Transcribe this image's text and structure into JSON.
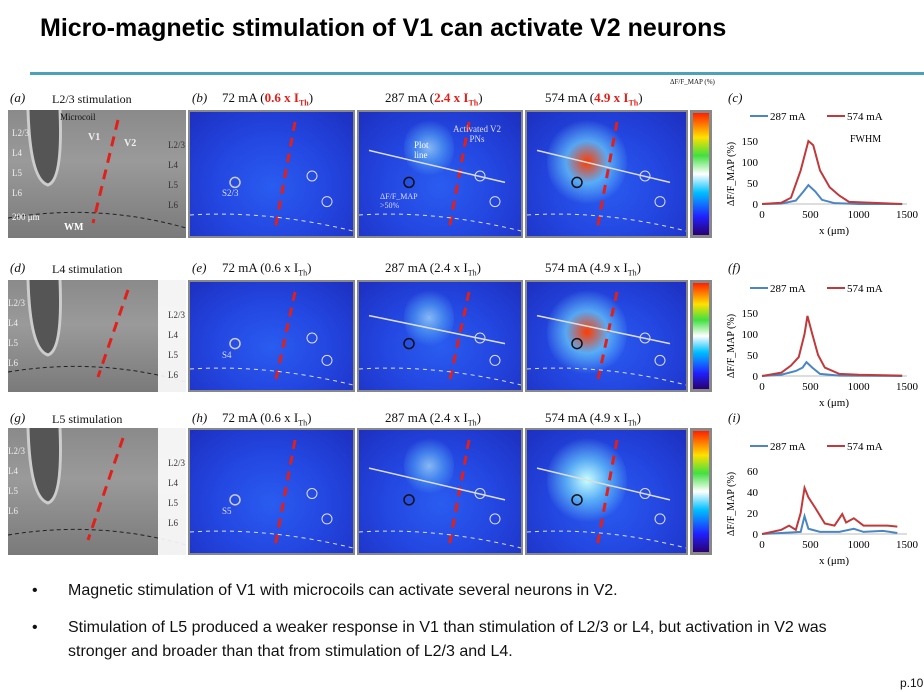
{
  "title": "Micro-magnetic stimulation of V1 can activate V2 neurons",
  "rows": [
    {
      "anat_label": "(a)",
      "stim": "L2/3 stimulation",
      "map_label": "(b)",
      "chart_label": "(c)",
      "currents": [
        {
          "base": "72 mA (",
          "mult": "0.6 x I",
          "sub": "Th",
          "end": ")"
        },
        {
          "base": "287 mA (",
          "mult": "2.4 x I",
          "sub": "Th",
          "end": ")"
        },
        {
          "base": "574 mA (",
          "mult": "4.9 x I",
          "sub": "Th",
          "end": ")"
        }
      ],
      "site": "S2/3"
    },
    {
      "anat_label": "(d)",
      "stim": "L4 stimulation",
      "map_label": "(e)",
      "chart_label": "(f)",
      "currents": [
        {
          "base": "72 mA (",
          "mult": "0.6 x I",
          "sub": "Th",
          "end": ")"
        },
        {
          "base": "287 mA (",
          "mult": "2.4 x I",
          "sub": "Th",
          "end": ")"
        },
        {
          "base": "574 mA (",
          "mult": "4.9 x I",
          "sub": "Th",
          "end": ")"
        }
      ],
      "site": "S4"
    },
    {
      "anat_label": "(g)",
      "stim": "L5 stimulation",
      "map_label": "(h)",
      "chart_label": "(i)",
      "currents": [
        {
          "base": "72 mA (",
          "mult": "0.6 x I",
          "sub": "Th",
          "end": ")"
        },
        {
          "base": "287 mA (",
          "mult": "2.4 x I",
          "sub": "Th",
          "end": ")"
        },
        {
          "base": "574 mA (",
          "mult": "4.9 x I",
          "sub": "Th",
          "end": ")"
        }
      ],
      "site": "S5"
    }
  ],
  "annotations": {
    "microcoil": "Microcoil",
    "v1": "V1",
    "v2": "V2",
    "scale": "200 μm",
    "wm": "WM",
    "plot_line": "Plot line",
    "activated": "Activated V2 PNs",
    "threshold": "ΔF/F_MAP >50%",
    "colorbar_label": "ΔF/F_MAP (%)",
    "fwhm": "FWHM",
    "layers": [
      "L2/3",
      "L4",
      "L5",
      "L6"
    ]
  },
  "chart_data": [
    {
      "type": "line",
      "title": "(c)",
      "xlabel": "x (μm)",
      "ylabel": "ΔF/F_MAP (%)",
      "xlim": [
        0,
        1500
      ],
      "ylim": [
        0,
        150
      ],
      "xticks": [
        0,
        500,
        1000,
        1500
      ],
      "yticks": [
        0,
        50,
        100,
        150
      ],
      "legend": "top",
      "series": [
        {
          "name": "287 mA",
          "color": "#4a86c5",
          "points": [
            [
              0,
              0
            ],
            [
              200,
              1
            ],
            [
              350,
              8
            ],
            [
              430,
              30
            ],
            [
              480,
              45
            ],
            [
              550,
              30
            ],
            [
              620,
              10
            ],
            [
              750,
              2
            ],
            [
              1000,
              0
            ],
            [
              1450,
              0
            ]
          ]
        },
        {
          "name": "574 mA",
          "color": "#c0393b",
          "points": [
            [
              0,
              0
            ],
            [
              200,
              3
            ],
            [
              300,
              15
            ],
            [
              400,
              80
            ],
            [
              480,
              150
            ],
            [
              530,
              140
            ],
            [
              600,
              80
            ],
            [
              700,
              40
            ],
            [
              800,
              20
            ],
            [
              900,
              5
            ],
            [
              1450,
              0
            ]
          ]
        }
      ]
    },
    {
      "type": "line",
      "title": "(f)",
      "xlabel": "x (μm)",
      "ylabel": "ΔF/F_MAP (%)",
      "xlim": [
        0,
        1500
      ],
      "ylim": [
        0,
        150
      ],
      "xticks": [
        0,
        500,
        1000,
        1500
      ],
      "yticks": [
        0,
        50,
        100,
        150
      ],
      "legend": "top",
      "series": [
        {
          "name": "287 mA",
          "color": "#4a86c5",
          "points": [
            [
              0,
              0
            ],
            [
              200,
              3
            ],
            [
              350,
              12
            ],
            [
              420,
              20
            ],
            [
              460,
              33
            ],
            [
              520,
              20
            ],
            [
              600,
              5
            ],
            [
              800,
              1
            ],
            [
              1450,
              0
            ]
          ]
        },
        {
          "name": "574 mA",
          "color": "#c0393b",
          "points": [
            [
              0,
              0
            ],
            [
              100,
              4
            ],
            [
              200,
              8
            ],
            [
              300,
              25
            ],
            [
              380,
              45
            ],
            [
              440,
              100
            ],
            [
              470,
              143
            ],
            [
              520,
              100
            ],
            [
              580,
              50
            ],
            [
              650,
              20
            ],
            [
              800,
              5
            ],
            [
              1000,
              3
            ],
            [
              1450,
              1
            ]
          ]
        }
      ]
    },
    {
      "type": "line",
      "title": "(i)",
      "xlabel": "x (μm)",
      "ylabel": "ΔF/F_MAP (%)",
      "xlim": [
        0,
        1500
      ],
      "ylim": [
        0,
        60
      ],
      "xticks": [
        0,
        500,
        1000,
        1500
      ],
      "yticks": [
        0,
        20,
        40,
        60
      ],
      "legend": "top",
      "series": [
        {
          "name": "287 mA",
          "color": "#4a86c5",
          "points": [
            [
              0,
              0
            ],
            [
              200,
              1
            ],
            [
              400,
              2
            ],
            [
              440,
              17
            ],
            [
              480,
              5
            ],
            [
              600,
              2
            ],
            [
              800,
              2
            ],
            [
              950,
              5
            ],
            [
              1050,
              2
            ],
            [
              1250,
              3
            ],
            [
              1400,
              1
            ]
          ]
        },
        {
          "name": "574 mA",
          "color": "#c0393b",
          "points": [
            [
              0,
              0
            ],
            [
              200,
              4
            ],
            [
              280,
              8
            ],
            [
              350,
              4
            ],
            [
              400,
              20
            ],
            [
              440,
              44
            ],
            [
              480,
              35
            ],
            [
              550,
              25
            ],
            [
              650,
              10
            ],
            [
              750,
              8
            ],
            [
              830,
              19
            ],
            [
              870,
              11
            ],
            [
              950,
              15
            ],
            [
              1050,
              8
            ],
            [
              1300,
              8
            ],
            [
              1400,
              7
            ]
          ]
        }
      ]
    }
  ],
  "bullets": [
    "Magnetic stimulation of V1 with microcoils can activate several neurons in V2.",
    "Stimulation of L5 produced a weaker response in V1 than stimulation of L2/3 or L4, but activation in V2 was stronger and broader than that from stimulation of L2/3 and L4."
  ],
  "bullet_char": "•",
  "page_number": "p.10"
}
